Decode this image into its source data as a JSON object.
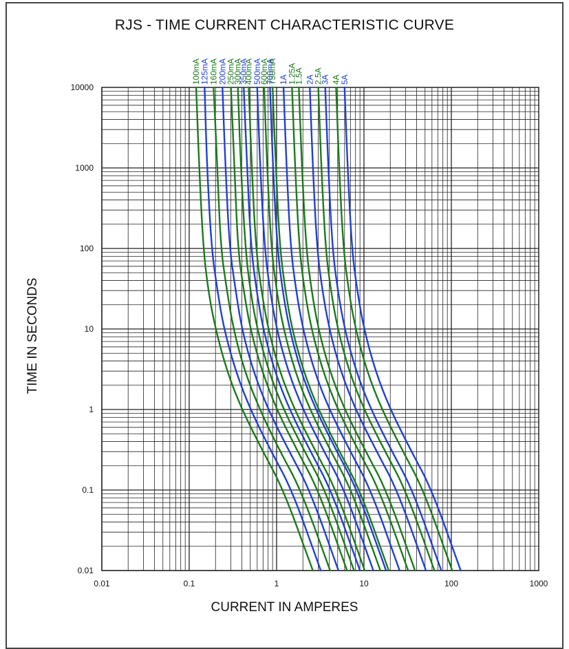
{
  "chart_data": {
    "type": "line",
    "title": "RJS - TIME CURRENT CHARACTERISTIC CURVE",
    "xlabel": "CURRENT IN AMPERES",
    "ylabel": "TIME IN SECONDS",
    "xscale": "log",
    "yscale": "log",
    "xlim": [
      0.01,
      1000
    ],
    "ylim": [
      0.01,
      10000
    ],
    "grid": true,
    "x_ticks": [
      "0.01",
      "0.1",
      "1",
      "10",
      "100",
      "1000"
    ],
    "y_ticks": [
      "0.01",
      "0.1",
      "1",
      "10",
      "100",
      "1000",
      "10000"
    ],
    "series_names": [
      "100mA",
      "125mA",
      "160mA",
      "200mA",
      "250mA",
      "300mA",
      "350mA",
      "400mA",
      "500mA",
      "600mA",
      "700mA",
      "750mA",
      "1A",
      "1.25A",
      "1.5A",
      "2A",
      "2.5A",
      "3A",
      "4A",
      "5A"
    ],
    "series": [
      {
        "name": "100mA",
        "color": "#1a7a1a",
        "x": [
          0.12,
          0.13,
          0.145,
          0.165,
          0.2,
          0.27,
          0.4,
          0.7,
          1.2,
          2.6
        ],
        "y": [
          10000,
          1000,
          100,
          30,
          10,
          3,
          1,
          0.3,
          0.1,
          0.01
        ]
      },
      {
        "name": "125mA",
        "color": "#1f3fd6",
        "x": [
          0.15,
          0.16,
          0.18,
          0.21,
          0.25,
          0.34,
          0.5,
          0.87,
          1.5,
          3.2
        ],
        "y": [
          10000,
          1000,
          100,
          30,
          10,
          3,
          1,
          0.3,
          0.1,
          0.01
        ]
      },
      {
        "name": "160mA",
        "color": "#1a7a1a",
        "x": [
          0.19,
          0.21,
          0.23,
          0.27,
          0.32,
          0.43,
          0.64,
          1.1,
          1.9,
          4.1
        ],
        "y": [
          10000,
          1000,
          100,
          30,
          10,
          3,
          1,
          0.3,
          0.1,
          0.01
        ]
      },
      {
        "name": "200mA",
        "color": "#1f3fd6",
        "x": [
          0.24,
          0.26,
          0.29,
          0.34,
          0.4,
          0.54,
          0.8,
          1.4,
          2.4,
          5.1
        ],
        "y": [
          10000,
          1000,
          100,
          30,
          10,
          3,
          1,
          0.3,
          0.1,
          0.01
        ]
      },
      {
        "name": "250mA",
        "color": "#1a7a1a",
        "x": [
          0.3,
          0.33,
          0.36,
          0.42,
          0.5,
          0.68,
          1.0,
          1.75,
          3.0,
          6.4
        ],
        "y": [
          10000,
          1000,
          100,
          30,
          10,
          3,
          1,
          0.3,
          0.1,
          0.01
        ]
      },
      {
        "name": "300mA",
        "color": "#1a7a1a",
        "x": [
          0.36,
          0.39,
          0.44,
          0.5,
          0.6,
          0.81,
          1.2,
          2.1,
          3.6,
          7.7
        ],
        "y": [
          10000,
          1000,
          100,
          30,
          10,
          3,
          1,
          0.3,
          0.1,
          0.01
        ]
      },
      {
        "name": "350mA",
        "color": "#1f3fd6",
        "x": [
          0.42,
          0.46,
          0.51,
          0.59,
          0.7,
          0.95,
          1.4,
          2.45,
          4.2,
          9.0
        ],
        "y": [
          10000,
          1000,
          100,
          30,
          10,
          3,
          1,
          0.3,
          0.1,
          0.01
        ]
      },
      {
        "name": "400mA",
        "color": "#1a7a1a",
        "x": [
          0.48,
          0.52,
          0.58,
          0.67,
          0.8,
          1.08,
          1.6,
          2.8,
          4.8,
          10.2
        ],
        "y": [
          10000,
          1000,
          100,
          30,
          10,
          3,
          1,
          0.3,
          0.1,
          0.01
        ]
      },
      {
        "name": "500mA",
        "color": "#1f3fd6",
        "x": [
          0.6,
          0.65,
          0.73,
          0.84,
          1.0,
          1.35,
          2.0,
          3.5,
          6.0,
          12.8
        ],
        "y": [
          10000,
          1000,
          100,
          30,
          10,
          3,
          1,
          0.3,
          0.1,
          0.01
        ]
      },
      {
        "name": "600mA",
        "color": "#1a7a1a",
        "x": [
          0.72,
          0.78,
          0.87,
          1.0,
          1.2,
          1.62,
          2.4,
          4.2,
          7.2,
          15.4
        ],
        "y": [
          10000,
          1000,
          100,
          30,
          10,
          3,
          1,
          0.3,
          0.1,
          0.01
        ]
      },
      {
        "name": "700mA",
        "color": "#1f3fd6",
        "x": [
          0.84,
          0.91,
          1.02,
          1.17,
          1.4,
          1.89,
          2.8,
          4.9,
          8.4,
          17.9
        ],
        "y": [
          10000,
          1000,
          100,
          30,
          10,
          3,
          1,
          0.3,
          0.1,
          0.01
        ]
      },
      {
        "name": "750mA",
        "color": "#1a7a1a",
        "x": [
          0.9,
          0.98,
          1.09,
          1.26,
          1.5,
          2.03,
          3.0,
          5.25,
          9.0,
          19.2
        ],
        "y": [
          10000,
          1000,
          100,
          30,
          10,
          3,
          1,
          0.3,
          0.1,
          0.01
        ]
      },
      {
        "name": "1A",
        "color": "#1f3fd6",
        "x": [
          1.2,
          1.3,
          1.45,
          1.67,
          2.0,
          2.7,
          4.0,
          7.0,
          12.0,
          25.6
        ],
        "y": [
          10000,
          1000,
          100,
          30,
          10,
          3,
          1,
          0.3,
          0.1,
          0.01
        ]
      },
      {
        "name": "1.25A",
        "color": "#1a7a1a",
        "x": [
          1.5,
          1.63,
          1.82,
          2.09,
          2.5,
          3.38,
          5.0,
          8.75,
          15.0,
          32.0
        ],
        "y": [
          10000,
          1000,
          100,
          30,
          10,
          3,
          1,
          0.3,
          0.1,
          0.01
        ]
      },
      {
        "name": "1.5A",
        "color": "#1a7a1a",
        "x": [
          1.8,
          1.95,
          2.18,
          2.51,
          3.0,
          4.05,
          6.0,
          10.5,
          18.0,
          38.4
        ],
        "y": [
          10000,
          1000,
          100,
          30,
          10,
          3,
          1,
          0.3,
          0.1,
          0.01
        ]
      },
      {
        "name": "2A",
        "color": "#1f3fd6",
        "x": [
          2.4,
          2.6,
          2.9,
          3.34,
          4.0,
          5.4,
          8.0,
          14.0,
          24.0,
          51.2
        ],
        "y": [
          10000,
          1000,
          100,
          30,
          10,
          3,
          1,
          0.3,
          0.1,
          0.01
        ]
      },
      {
        "name": "2.5A",
        "color": "#1a7a1a",
        "x": [
          3.0,
          3.25,
          3.63,
          4.18,
          5.0,
          6.75,
          10.0,
          17.5,
          30.0,
          64.0
        ],
        "y": [
          10000,
          1000,
          100,
          30,
          10,
          3,
          1,
          0.3,
          0.1,
          0.01
        ]
      },
      {
        "name": "3A",
        "color": "#1f3fd6",
        "x": [
          3.6,
          3.9,
          4.35,
          5.01,
          6.0,
          8.1,
          12.0,
          21.0,
          36.0,
          76.8
        ],
        "y": [
          10000,
          1000,
          100,
          30,
          10,
          3,
          1,
          0.3,
          0.1,
          0.01
        ]
      },
      {
        "name": "4A",
        "color": "#1a7a1a",
        "x": [
          4.8,
          5.2,
          5.8,
          6.68,
          8.0,
          10.8,
          16.0,
          28.0,
          48.0,
          102.4
        ],
        "y": [
          10000,
          1000,
          100,
          30,
          10,
          3,
          1,
          0.3,
          0.1,
          0.01
        ]
      },
      {
        "name": "5A",
        "color": "#1f3fd6",
        "x": [
          6.0,
          6.5,
          7.25,
          8.35,
          10.0,
          13.5,
          20.0,
          35.0,
          60.0,
          128.0
        ],
        "y": [
          10000,
          1000,
          100,
          30,
          10,
          3,
          1,
          0.3,
          0.1,
          0.01
        ]
      }
    ]
  },
  "colors": {
    "green": "#1a7a1a",
    "blue": "#1f3fd6",
    "grid": "#222222",
    "frame": "#444444"
  }
}
